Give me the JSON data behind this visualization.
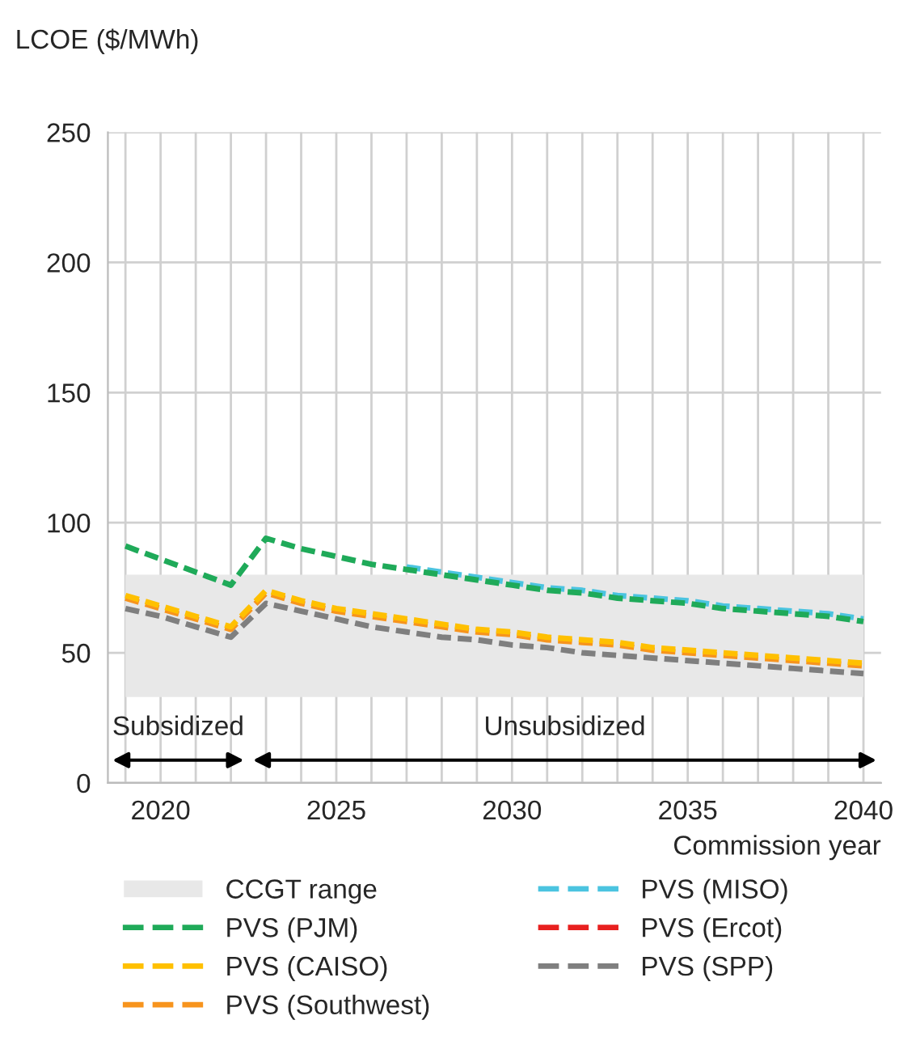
{
  "chart_data": {
    "type": "line",
    "ylabel": "LCOE ($/MWh)",
    "xlabel": "Commission year",
    "x": [
      2019,
      2020,
      2021,
      2022,
      2023,
      2024,
      2025,
      2026,
      2027,
      2028,
      2029,
      2030,
      2031,
      2032,
      2033,
      2034,
      2035,
      2036,
      2037,
      2038,
      2039,
      2040
    ],
    "series": [
      {
        "name": "PVS (PJM)",
        "color": "#1faa59",
        "values": [
          91,
          86,
          81,
          76,
          94,
          90,
          87,
          84,
          82,
          80,
          78,
          76,
          74,
          73,
          71,
          70,
          69,
          67,
          66,
          65,
          64,
          62
        ]
      },
      {
        "name": "PVS (CAISO)",
        "color": "#ffc000",
        "values": [
          72,
          68,
          64,
          60,
          74,
          70,
          67,
          65,
          63,
          61,
          59,
          58,
          56,
          55,
          54,
          52,
          51,
          50,
          49,
          48,
          47,
          46
        ]
      },
      {
        "name": "PVS (Southwest)",
        "color": "#f7941d",
        "values": [
          71,
          67,
          63,
          59,
          73,
          69,
          66,
          64,
          62,
          60,
          58,
          57,
          55,
          54,
          53,
          51,
          50,
          49,
          48,
          47,
          46,
          45
        ]
      },
      {
        "name": "PVS (MISO)",
        "color": "#4bc4e0",
        "values": [
          null,
          null,
          null,
          null,
          null,
          null,
          null,
          null,
          83,
          81,
          79,
          77,
          75,
          74,
          72,
          71,
          70,
          68,
          67,
          66,
          65,
          63
        ]
      },
      {
        "name": "PVS (Ercot)",
        "color": "#e8201f",
        "values": [
          null,
          null,
          null,
          null,
          null,
          null,
          null,
          null,
          null,
          null,
          null,
          null,
          null,
          null,
          null,
          null,
          null,
          null,
          null,
          null,
          null,
          null
        ]
      },
      {
        "name": "PVS (SPP)",
        "color": "#7f7f7f",
        "values": [
          67,
          64,
          60,
          56,
          69,
          66,
          63,
          60,
          58,
          56,
          55,
          53,
          52,
          50,
          49,
          48,
          47,
          46,
          45,
          44,
          43,
          42
        ]
      }
    ],
    "bands": [
      {
        "axis": "y",
        "from": 33,
        "to": 80,
        "label": "CCGT range",
        "color": "#e8e8e8"
      }
    ],
    "annotations": [
      "Subsidized",
      "Unsubsidized"
    ],
    "xlim": [
      2018.5,
      2040.5
    ],
    "ylim": [
      0,
      250
    ],
    "yticks": [
      0,
      50,
      100,
      150,
      200,
      250
    ],
    "xticks": [
      {
        "value": 2019,
        "label": null
      },
      2020,
      {
        "value": 2021,
        "label": null
      },
      {
        "value": 2022,
        "label": null
      },
      {
        "value": 2023,
        "label": null
      },
      {
        "value": 2024,
        "label": null
      },
      2025,
      {
        "value": 2026,
        "label": null
      },
      {
        "value": 2027,
        "label": null
      },
      {
        "value": 2028,
        "label": null
      },
      {
        "value": 2029,
        "label": null
      },
      2030,
      {
        "value": 2031,
        "label": null
      },
      {
        "value": 2032,
        "label": null
      },
      {
        "value": 2033,
        "label": null
      },
      {
        "value": 2034,
        "label": null
      },
      2035,
      {
        "value": 2036,
        "label": null
      },
      {
        "value": 2037,
        "label": null
      },
      {
        "value": 2038,
        "label": null
      },
      {
        "value": 2039,
        "label": null
      },
      2040
    ],
    "grid": true,
    "legend": "bottom",
    "line_style": "dashed",
    "marker": "none"
  }
}
